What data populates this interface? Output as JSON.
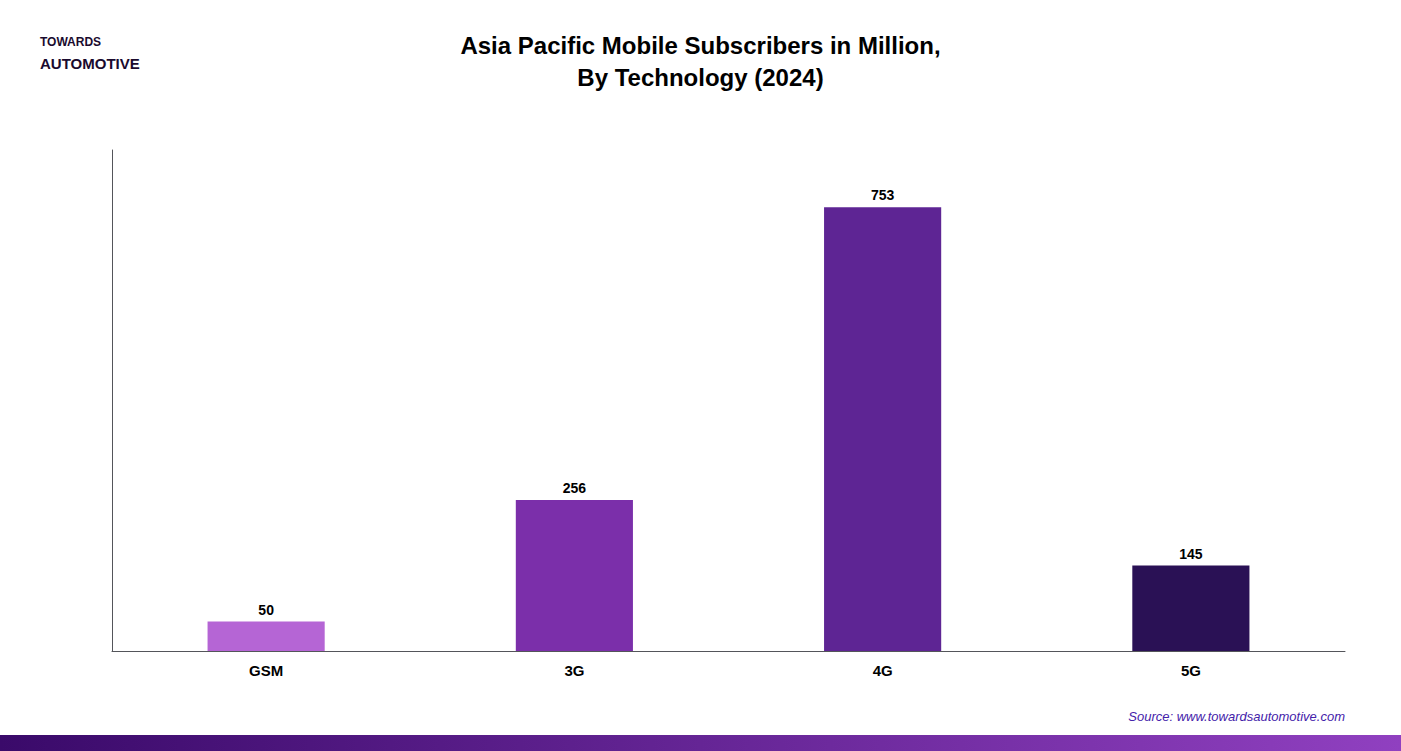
{
  "chart_data": {
    "type": "bar",
    "title": "Asia Pacific Mobile Subscribers in Million,\nBy Technology (2024)",
    "categories": [
      "GSM",
      "3G",
      "4G",
      "5G"
    ],
    "values": [
      50,
      256,
      753,
      145
    ],
    "colors": [
      "#b565d5",
      "#7b2faa",
      "#5e2594",
      "#2a1155"
    ],
    "ylim": [
      0,
      850
    ],
    "grid": false,
    "tick_labels": "x",
    "data_labels": true,
    "annotations": [
      "Source: www.towardsautomotive.com",
      "TOWARDS",
      "AUTOMOTIVE"
    ]
  }
}
